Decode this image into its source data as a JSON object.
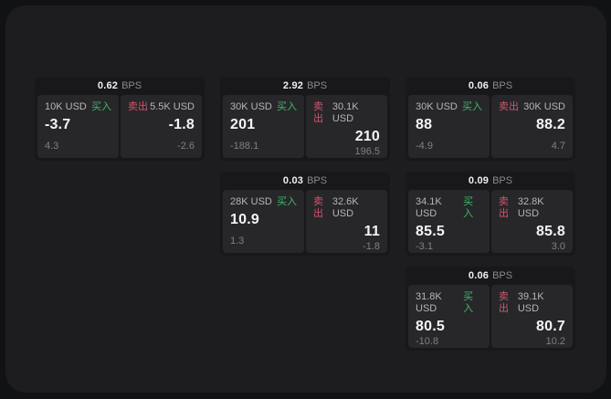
{
  "labels": {
    "bps": "BPS",
    "buy": "买入",
    "sell": "卖出"
  },
  "colors": {
    "backdrop": "#111214",
    "panel_bg": "#1d1d1f",
    "card_bg": "#18181a",
    "tile_bg": "#27272a",
    "buy_green": "#3db96a",
    "sell_red": "#d2556b"
  },
  "cards": [
    {
      "bps": "0.62",
      "buy": {
        "amount": "10K USD",
        "price": "-3.7",
        "sub": "4.3"
      },
      "sell": {
        "amount": "5.5K USD",
        "price": "-1.8",
        "sub": "-2.6"
      }
    },
    {
      "bps": "2.92",
      "buy": {
        "amount": "30K USD",
        "price": "201",
        "sub": "-188.1"
      },
      "sell": {
        "amount": "30.1K USD",
        "price": "210",
        "sub": "196.5"
      }
    },
    {
      "bps": "0.06",
      "buy": {
        "amount": "30K USD",
        "price": "88",
        "sub": "-4.9"
      },
      "sell": {
        "amount": "30K USD",
        "price": "88.2",
        "sub": "4.7"
      }
    },
    {
      "bps": "0.03",
      "buy": {
        "amount": "28K USD",
        "price": "10.9",
        "sub": "1.3"
      },
      "sell": {
        "amount": "32.6K USD",
        "price": "11",
        "sub": "-1.8"
      }
    },
    {
      "bps": "0.09",
      "buy": {
        "amount": "34.1K USD",
        "price": "85.5",
        "sub": "-3.1"
      },
      "sell": {
        "amount": "32.8K USD",
        "price": "85.8",
        "sub": "3.0"
      }
    },
    {
      "bps": "0.06",
      "buy": {
        "amount": "31.8K USD",
        "price": "80.5",
        "sub": "-10.8"
      },
      "sell": {
        "amount": "39.1K USD",
        "price": "80.7",
        "sub": "10.2"
      }
    }
  ]
}
